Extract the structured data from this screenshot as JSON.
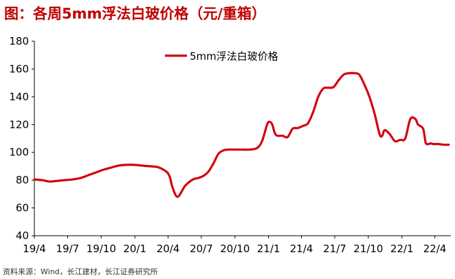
{
  "figure": {
    "title": "图：各周5mm浮法白玻价格（元/重箱）",
    "source": "资料来源：Wind，长江建材，长江证券研究所"
  },
  "colors": {
    "title": "#c00000",
    "series": "#d40010",
    "axis": "#000000"
  },
  "chart_data": {
    "type": "line",
    "title": "",
    "xlabel": "",
    "ylabel": "",
    "ylim": [
      40,
      180
    ],
    "yticks": [
      40,
      60,
      80,
      100,
      120,
      140,
      160,
      180
    ],
    "xlim": [
      "2019-04-01",
      "2022-05-15"
    ],
    "x_tick_labels": [
      "19/4",
      "19/7",
      "19/10",
      "20/1",
      "20/4",
      "20/7",
      "20/10",
      "21/1",
      "21/4",
      "21/7",
      "21/10",
      "22/1",
      "22/4"
    ],
    "x_tick_dates": [
      "2019-04-01",
      "2019-07-01",
      "2019-10-01",
      "2020-01-01",
      "2020-04-01",
      "2020-07-01",
      "2020-10-01",
      "2021-01-01",
      "2021-04-01",
      "2021-07-01",
      "2021-10-01",
      "2022-01-01",
      "2022-04-01"
    ],
    "grid": false,
    "legend_position": "top-center",
    "series": [
      {
        "name": "5mm浮法白玻价格",
        "x": [
          "2019-04-01",
          "2019-04-22",
          "2019-05-13",
          "2019-06-03",
          "2019-06-24",
          "2019-07-15",
          "2019-08-05",
          "2019-08-26",
          "2019-09-16",
          "2019-10-07",
          "2019-10-28",
          "2019-11-18",
          "2019-12-09",
          "2019-12-30",
          "2020-01-20",
          "2020-02-10",
          "2020-03-02",
          "2020-03-16",
          "2020-03-30",
          "2020-04-06",
          "2020-04-13",
          "2020-04-27",
          "2020-05-18",
          "2020-06-08",
          "2020-06-22",
          "2020-07-06",
          "2020-07-20",
          "2020-08-03",
          "2020-08-17",
          "2020-08-31",
          "2020-09-14",
          "2020-09-28",
          "2020-10-19",
          "2020-11-09",
          "2020-11-30",
          "2020-12-14",
          "2020-12-28",
          "2021-01-04",
          "2021-01-11",
          "2021-01-18",
          "2021-01-25",
          "2021-02-08",
          "2021-02-22",
          "2021-03-08",
          "2021-03-22",
          "2021-04-05",
          "2021-04-19",
          "2021-05-03",
          "2021-05-17",
          "2021-05-31",
          "2021-06-14",
          "2021-06-28",
          "2021-07-12",
          "2021-07-26",
          "2021-08-09",
          "2021-08-23",
          "2021-09-06",
          "2021-09-20",
          "2021-10-04",
          "2021-10-18",
          "2021-11-01",
          "2021-11-08",
          "2021-11-15",
          "2021-11-29",
          "2021-12-13",
          "2021-12-27",
          "2022-01-10",
          "2022-01-24",
          "2022-02-07",
          "2022-02-14",
          "2022-02-28",
          "2022-03-07",
          "2022-03-14",
          "2022-03-21",
          "2022-03-28",
          "2022-04-11",
          "2022-04-25",
          "2022-05-09"
        ],
        "y": [
          80.5,
          80,
          79,
          79.5,
          80,
          80.5,
          81.5,
          83.5,
          85.5,
          87.5,
          89,
          90.5,
          91,
          91,
          90.5,
          90,
          89.5,
          88,
          85.5,
          82,
          75,
          68,
          76,
          80.5,
          81.5,
          83,
          86,
          92,
          99,
          101.5,
          102,
          102,
          102,
          102,
          103,
          108,
          120,
          122,
          120,
          114,
          112,
          112,
          111,
          117,
          117.5,
          119,
          121,
          129,
          140,
          146,
          146.5,
          147,
          152,
          156,
          157,
          157,
          156,
          149,
          140,
          128,
          113,
          112,
          116,
          113,
          108,
          109,
          110,
          124,
          124,
          120,
          117,
          107,
          106,
          106.5,
          106,
          106,
          105.5,
          105.5
        ]
      }
    ]
  }
}
